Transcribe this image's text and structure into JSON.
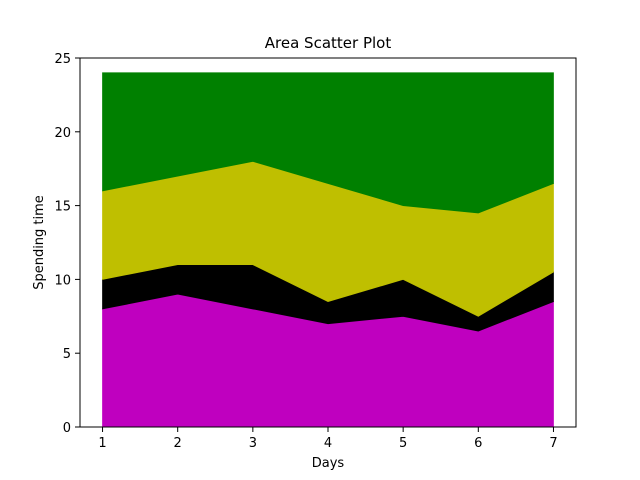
{
  "chart_data": {
    "type": "area",
    "title": "Area Scatter Plot",
    "xlabel": "Days",
    "ylabel": "Spending time",
    "x": [
      1,
      2,
      3,
      4,
      5,
      6,
      7
    ],
    "xlim": [
      0.7,
      7.3
    ],
    "ylim": [
      0,
      25
    ],
    "xticks": [
      1,
      2,
      3,
      4,
      5,
      6,
      7
    ],
    "yticks": [
      0,
      5,
      10,
      15,
      20,
      25
    ],
    "stacked": true,
    "grid": false,
    "legend": "none",
    "series": [
      {
        "color": "#bf00bf",
        "values": [
          8,
          9,
          8,
          7,
          7.5,
          6.5,
          8.5
        ]
      },
      {
        "color": "#000000",
        "values": [
          2,
          2,
          3,
          1.5,
          2.5,
          1,
          2
        ]
      },
      {
        "color": "#bfbf00",
        "values": [
          6,
          6,
          7,
          8,
          5,
          7,
          6
        ]
      },
      {
        "color": "#008000",
        "values": [
          8,
          7,
          6,
          7.5,
          9,
          9.5,
          7.5
        ]
      }
    ]
  }
}
